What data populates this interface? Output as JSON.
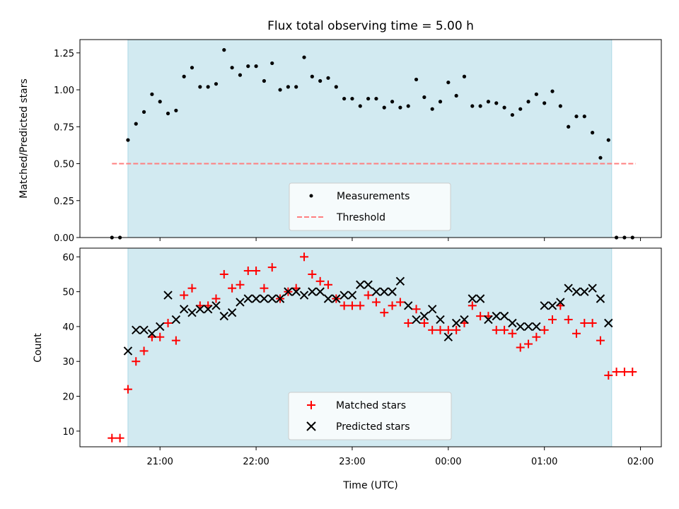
{
  "chart_data": [
    {
      "type": "scatter",
      "title": "Flux total observing time = 5.00 h",
      "xlabel": "",
      "ylabel": "Matched/Predicted stars",
      "xlim": [
        "20:10",
        "02:13"
      ],
      "ylim": [
        0,
        1.34
      ],
      "yticks": [
        "0.00",
        "0.25",
        "0.50",
        "0.75",
        "1.00",
        "1.25"
      ],
      "shaded_region": [
        "20:40",
        "01:42"
      ],
      "shade_color": "#add8e6",
      "legend_position": "lower center",
      "series": [
        {
          "name": "Measurements",
          "marker": "dot",
          "color": "#000000",
          "x": [
            "20:30",
            "20:35",
            "20:40",
            "20:45",
            "20:50",
            "20:55",
            "21:00",
            "21:05",
            "21:10",
            "21:15",
            "21:20",
            "21:25",
            "21:30",
            "21:35",
            "21:40",
            "21:45",
            "21:50",
            "21:55",
            "22:00",
            "22:05",
            "22:10",
            "22:15",
            "22:20",
            "22:25",
            "22:30",
            "22:35",
            "22:40",
            "22:45",
            "22:50",
            "22:55",
            "23:00",
            "23:05",
            "23:10",
            "23:15",
            "23:20",
            "23:25",
            "23:30",
            "23:35",
            "23:40",
            "23:45",
            "23:50",
            "23:55",
            "00:00",
            "00:05",
            "00:10",
            "00:15",
            "00:20",
            "00:25",
            "00:30",
            "00:35",
            "00:40",
            "00:45",
            "00:50",
            "00:55",
            "01:00",
            "01:05",
            "01:10",
            "01:15",
            "01:20",
            "01:25",
            "01:30",
            "01:35",
            "01:40",
            "01:45",
            "01:50",
            "01:55"
          ],
          "y": [
            0,
            0,
            0.66,
            0.77,
            0.85,
            0.97,
            0.92,
            0.84,
            0.86,
            1.09,
            1.15,
            1.02,
            1.02,
            1.04,
            1.27,
            1.15,
            1.1,
            1.16,
            1.16,
            1.06,
            1.18,
            1.0,
            1.02,
            1.02,
            1.22,
            1.09,
            1.06,
            1.08,
            1.02,
            0.94,
            0.94,
            0.89,
            0.94,
            0.94,
            0.88,
            0.92,
            0.88,
            0.89,
            1.07,
            0.95,
            0.87,
            0.92,
            1.05,
            0.96,
            1.09,
            0.89,
            0.89,
            0.92,
            0.91,
            0.88,
            0.83,
            0.87,
            0.92,
            0.97,
            0.91,
            0.99,
            0.89,
            0.75,
            0.82,
            0.82,
            0.71,
            0.54,
            0.66,
            0,
            0,
            0
          ]
        },
        {
          "name": "Threshold",
          "marker": "dashed-line",
          "color": "#ff7f7f",
          "x": [
            "20:30",
            "01:57"
          ],
          "y": [
            0.5,
            0.5
          ]
        }
      ]
    },
    {
      "type": "scatter",
      "title": "",
      "xlabel": "Time (UTC)",
      "ylabel": "Count",
      "xlim": [
        "20:10",
        "02:13"
      ],
      "ylim": [
        5.5,
        62.5
      ],
      "yticks": [
        "10",
        "20",
        "30",
        "40",
        "50",
        "60"
      ],
      "xticks": [
        "21:00",
        "22:00",
        "23:00",
        "00:00",
        "01:00",
        "02:00"
      ],
      "shaded_region": [
        "20:40",
        "01:42"
      ],
      "shade_color": "#add8e6",
      "legend_position": "lower center",
      "series": [
        {
          "name": "Matched stars",
          "marker": "plus",
          "color": "#ff0000",
          "x": [
            "20:30",
            "20:35",
            "20:40",
            "20:45",
            "20:50",
            "20:55",
            "21:00",
            "21:05",
            "21:10",
            "21:15",
            "21:20",
            "21:25",
            "21:30",
            "21:35",
            "21:40",
            "21:45",
            "21:50",
            "21:55",
            "22:00",
            "22:05",
            "22:10",
            "22:15",
            "22:20",
            "22:25",
            "22:30",
            "22:35",
            "22:40",
            "22:45",
            "22:50",
            "22:55",
            "23:00",
            "23:05",
            "23:10",
            "23:15",
            "23:20",
            "23:25",
            "23:30",
            "23:35",
            "23:40",
            "23:45",
            "23:50",
            "23:55",
            "00:00",
            "00:05",
            "00:10",
            "00:15",
            "00:20",
            "00:25",
            "00:30",
            "00:35",
            "00:40",
            "00:45",
            "00:50",
            "00:55",
            "01:00",
            "01:05",
            "01:10",
            "01:15",
            "01:20",
            "01:25",
            "01:30",
            "01:35",
            "01:40",
            "01:45",
            "01:50",
            "01:55"
          ],
          "y": [
            8,
            8,
            22,
            30,
            33,
            37,
            37,
            41,
            36,
            49,
            51,
            46,
            46,
            48,
            55,
            51,
            52,
            56,
            56,
            51,
            57,
            48,
            50,
            51,
            60,
            55,
            53,
            52,
            48,
            46,
            46,
            46,
            49,
            47,
            44,
            46,
            47,
            41,
            45,
            41,
            39,
            39,
            39,
            39,
            41,
            46,
            43,
            43,
            39,
            39,
            38,
            34,
            35,
            37,
            39,
            42,
            46,
            42,
            38,
            41,
            41,
            36,
            26,
            27,
            27,
            27
          ]
        },
        {
          "name": "Predicted stars",
          "marker": "x",
          "color": "#000000",
          "x": [
            "20:40",
            "20:45",
            "20:50",
            "20:55",
            "21:00",
            "21:05",
            "21:10",
            "21:15",
            "21:20",
            "21:25",
            "21:30",
            "21:35",
            "21:40",
            "21:45",
            "21:50",
            "21:55",
            "22:00",
            "22:05",
            "22:10",
            "22:15",
            "22:20",
            "22:25",
            "22:30",
            "22:35",
            "22:40",
            "22:45",
            "22:50",
            "22:55",
            "23:00",
            "23:05",
            "23:10",
            "23:15",
            "23:20",
            "23:25",
            "23:30",
            "23:35",
            "23:40",
            "23:45",
            "23:50",
            "23:55",
            "00:00",
            "00:05",
            "00:10",
            "00:15",
            "00:20",
            "00:25",
            "00:30",
            "00:35",
            "00:40",
            "00:45",
            "00:50",
            "00:55",
            "01:00",
            "01:05",
            "01:10",
            "01:15",
            "01:20",
            "01:25",
            "01:30",
            "01:35",
            "01:40"
          ],
          "y": [
            33,
            39,
            39,
            38,
            40,
            49,
            42,
            45,
            44,
            45,
            45,
            46,
            43,
            44,
            47,
            48,
            48,
            48,
            48,
            48,
            50,
            50,
            49,
            50,
            50,
            48,
            48,
            49,
            49,
            52,
            52,
            50,
            50,
            50,
            53,
            46,
            42,
            43,
            45,
            42,
            37,
            41,
            42,
            48,
            48,
            42,
            43,
            43,
            41,
            40,
            40,
            40,
            46,
            46,
            47,
            51,
            50,
            50,
            51,
            48,
            41
          ]
        }
      ]
    }
  ]
}
